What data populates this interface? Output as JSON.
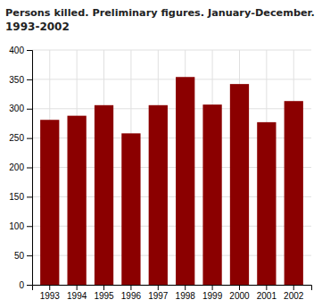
{
  "chart_data": {
    "type": "bar",
    "title": "Persons killed. Preliminary figures. January-December.",
    "subtitle": "1993-2002",
    "categories": [
      "1993",
      "1994",
      "1995",
      "1996",
      "1997",
      "1998",
      "1999",
      "2000",
      "2001",
      "2002"
    ],
    "values": [
      281,
      288,
      306,
      258,
      306,
      354,
      307,
      342,
      277,
      313
    ],
    "color": "#8B0000",
    "ylim": [
      0,
      400
    ],
    "yticks": [
      0,
      50,
      100,
      150,
      200,
      250,
      300,
      350,
      400
    ],
    "grid": true
  }
}
